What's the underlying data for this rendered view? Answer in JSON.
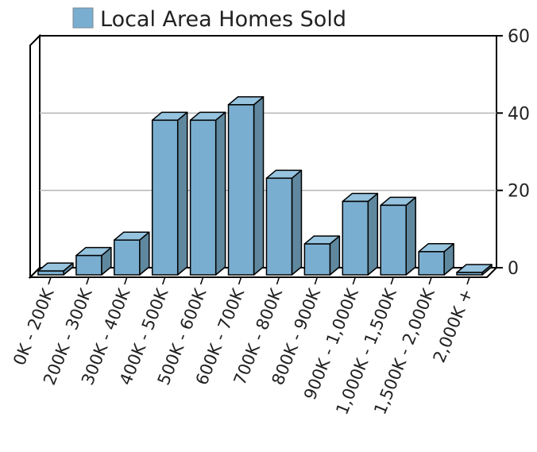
{
  "chart_data": {
    "type": "bar",
    "title": "",
    "xlabel": "",
    "ylabel": "",
    "categories": [
      "0K - 200K",
      "200K - 300K",
      "300K - 400K",
      "400K - 500K",
      "500K - 600K",
      "600K - 700K",
      "700K - 800K",
      "800K - 900K",
      "900K - 1,000K",
      "1,000K - 1,500K",
      "1,500K - 2,000K",
      "2,000K +"
    ],
    "series": [
      {
        "name": "Local Area Homes Sold",
        "color": "#7aaed0",
        "values": [
          1,
          5,
          9,
          40,
          40,
          44,
          25,
          8,
          19,
          18,
          6,
          0
        ]
      }
    ],
    "ylim": [
      0,
      60
    ],
    "yticks": [
      "0",
      "20",
      "40",
      "60"
    ],
    "y_axis_side": "right",
    "grid": true,
    "legend_position": "top-left",
    "style": "3d-bar"
  }
}
